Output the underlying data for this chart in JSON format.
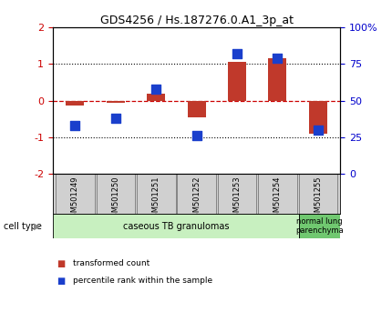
{
  "title": "GDS4256 / Hs.187276.0.A1_3p_at",
  "samples": [
    "GSM501249",
    "GSM501250",
    "GSM501251",
    "GSM501252",
    "GSM501253",
    "GSM501254",
    "GSM501255"
  ],
  "transformed_count": [
    -0.12,
    -0.05,
    0.2,
    -0.45,
    1.05,
    1.15,
    -0.9
  ],
  "percentile_rank": [
    33,
    38,
    58,
    26,
    82,
    79,
    30
  ],
  "ylim_left": [
    -2,
    2
  ],
  "ylim_right": [
    0,
    100
  ],
  "yticks_left": [
    -2,
    -1,
    0,
    1,
    2
  ],
  "yticks_right": [
    0,
    25,
    50,
    75,
    100
  ],
  "ytick_labels_right": [
    "0",
    "25",
    "50",
    "75",
    "100%"
  ],
  "bar_color": "#c0392b",
  "dot_color": "#1a3fcc",
  "zero_line_color": "#cc0000",
  "grid_color": "#000000",
  "cell_types": [
    {
      "label": "caseous TB granulomas",
      "span": [
        0,
        5
      ],
      "color": "#c8f0c0"
    },
    {
      "label": "normal lung\nparenchyma",
      "span": [
        6,
        6
      ],
      "color": "#70c870"
    }
  ],
  "legend_items": [
    {
      "color": "#c0392b",
      "label": "transformed count"
    },
    {
      "color": "#1a3fcc",
      "label": "percentile rank within the sample"
    }
  ],
  "cell_type_label": "cell type",
  "background_color": "#ffffff",
  "plot_bg": "#ffffff",
  "axis_label_color_left": "#cc0000",
  "axis_label_color_right": "#0000cc",
  "sample_box_color": "#d0d0d0",
  "sample_box_edge": "#888888"
}
